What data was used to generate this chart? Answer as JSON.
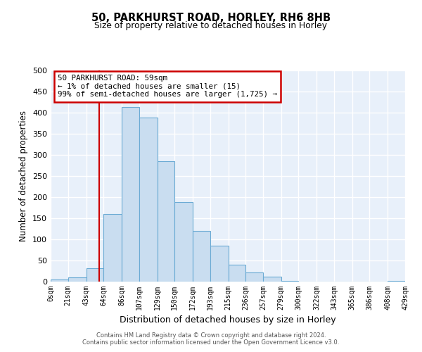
{
  "title": "50, PARKHURST ROAD, HORLEY, RH6 8HB",
  "subtitle": "Size of property relative to detached houses in Horley",
  "xlabel": "Distribution of detached houses by size in Horley",
  "ylabel": "Number of detached properties",
  "bar_color": "#c9ddf0",
  "bar_edge_color": "#6aaad4",
  "background_color": "#e8f0fa",
  "grid_color": "#ffffff",
  "bin_edges": [
    0,
    21,
    43,
    64,
    86,
    107,
    129,
    150,
    172,
    193,
    215,
    236,
    257,
    279,
    300,
    322,
    343,
    365,
    386,
    408,
    429
  ],
  "bin_labels": [
    "0sqm",
    "21sqm",
    "43sqm",
    "64sqm",
    "86sqm",
    "107sqm",
    "129sqm",
    "150sqm",
    "172sqm",
    "193sqm",
    "215sqm",
    "236sqm",
    "257sqm",
    "279sqm",
    "300sqm",
    "322sqm",
    "343sqm",
    "365sqm",
    "386sqm",
    "408sqm",
    "429sqm"
  ],
  "bar_heights": [
    5,
    10,
    32,
    160,
    413,
    388,
    285,
    188,
    120,
    85,
    40,
    22,
    12,
    2,
    0,
    0,
    0,
    0,
    0,
    2
  ],
  "red_line_x": 59,
  "annotation_line1": "50 PARKHURST ROAD: 59sqm",
  "annotation_line2": "← 1% of detached houses are smaller (15)",
  "annotation_line3": "99% of semi-detached houses are larger (1,725) →",
  "annotation_box_color": "#ffffff",
  "annotation_box_edge_color": "#cc0000",
  "red_line_color": "#cc0000",
  "ylim": [
    0,
    500
  ],
  "yticks": [
    0,
    50,
    100,
    150,
    200,
    250,
    300,
    350,
    400,
    450,
    500
  ],
  "footer_line1": "Contains HM Land Registry data © Crown copyright and database right 2024.",
  "footer_line2": "Contains public sector information licensed under the Open Government Licence v3.0."
}
